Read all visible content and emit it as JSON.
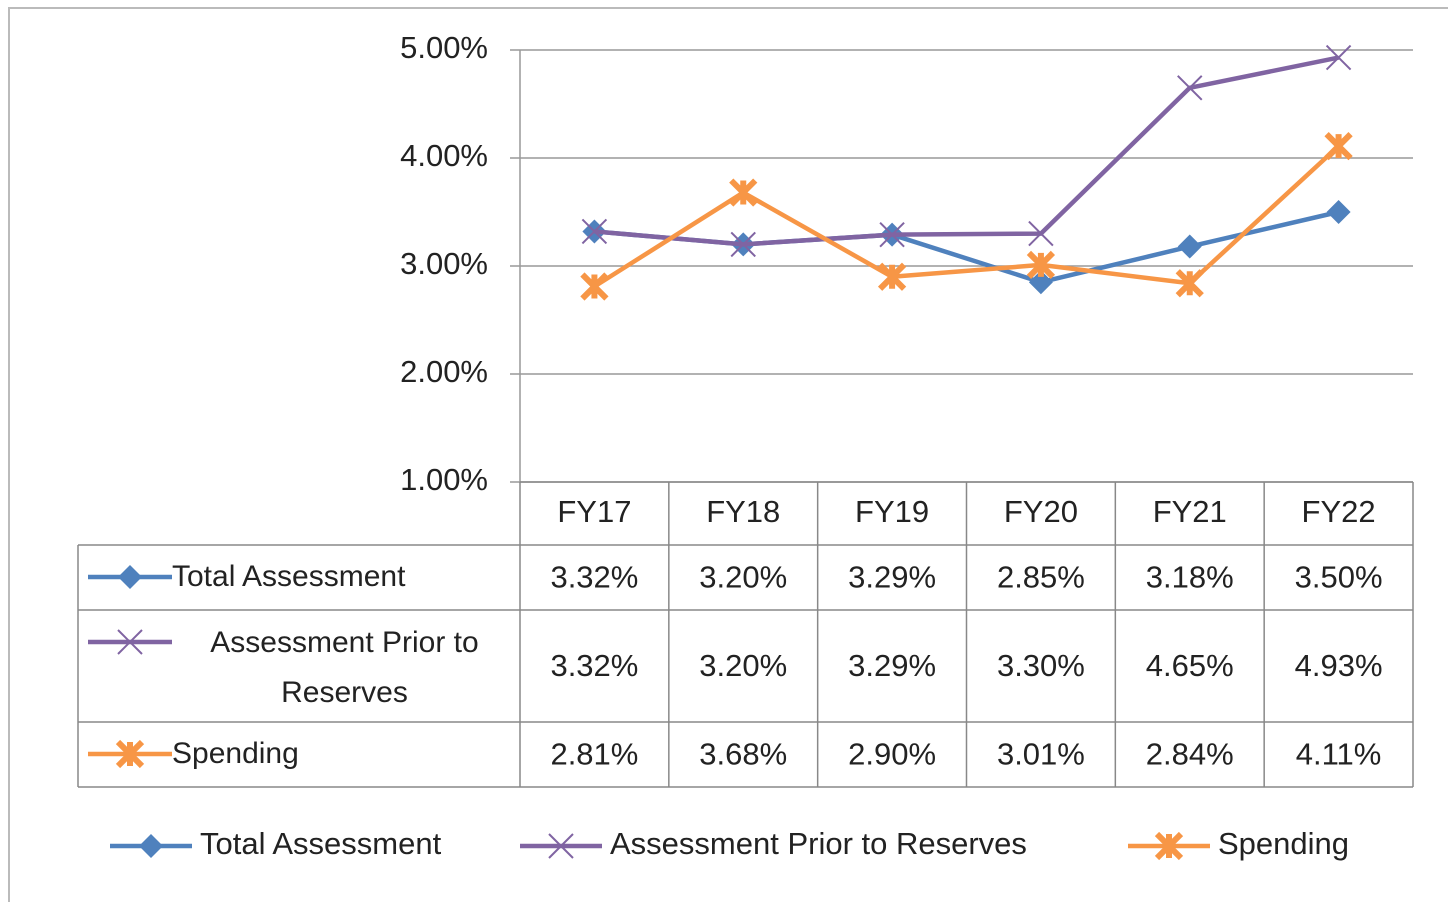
{
  "chart_data": {
    "type": "line",
    "categories": [
      "FY17",
      "FY18",
      "FY19",
      "FY20",
      "FY21",
      "FY22"
    ],
    "series": [
      {
        "name": "Total Assessment",
        "color": "#4f81bd",
        "marker": "diamond",
        "values": [
          3.32,
          3.2,
          3.29,
          2.85,
          3.18,
          3.5
        ],
        "value_labels": [
          "3.32%",
          "3.20%",
          "3.29%",
          "2.85%",
          "3.18%",
          "3.50%"
        ]
      },
      {
        "name": "Assessment Prior to Reserves",
        "color": "#8064a2",
        "marker": "x",
        "values": [
          3.32,
          3.2,
          3.29,
          3.3,
          4.65,
          4.93
        ],
        "value_labels": [
          "3.32%",
          "3.20%",
          "3.29%",
          "3.30%",
          "4.65%",
          "4.93%"
        ]
      },
      {
        "name": "Spending",
        "color": "#f79646",
        "marker": "star",
        "values": [
          2.81,
          3.68,
          2.9,
          3.01,
          2.84,
          4.11
        ],
        "value_labels": [
          "2.81%",
          "3.68%",
          "2.90%",
          "3.01%",
          "2.84%",
          "4.11%"
        ]
      }
    ],
    "ylim": [
      1,
      5
    ],
    "yticks": [
      {
        "value": 1,
        "label": "1.00%"
      },
      {
        "value": 2,
        "label": "2.00%"
      },
      {
        "value": 3,
        "label": "3.00%"
      },
      {
        "value": 4,
        "label": "4.00%"
      },
      {
        "value": 5,
        "label": "5.00%"
      }
    ],
    "grid": true,
    "data_table": true,
    "legend": "bottom"
  }
}
